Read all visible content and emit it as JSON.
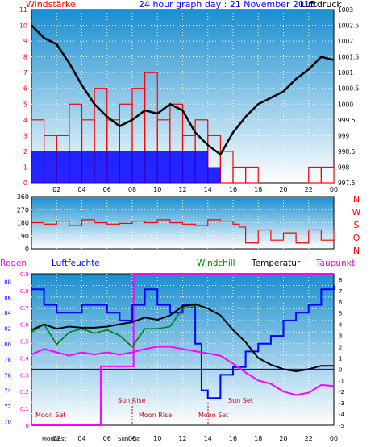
{
  "header": {
    "left_title": "Windstärke",
    "center_title": "24 hour graph day : 21 November 2015",
    "right_title": "Luftdruck"
  },
  "colors": {
    "background": "#ffffff",
    "gradient_top": "#1a8fd0",
    "gradient_bottom": "#ffffff",
    "wind_speed": "#ff0000",
    "gust": "#0000ff",
    "pressure": "#000000",
    "wind_dir": "#ff0000",
    "rain": "#ff00ff",
    "humidity": "#0000ff",
    "windchill": "#008000",
    "temperature": "#000000",
    "dewpoint": "#ff00ff"
  },
  "chart_data": [
    {
      "type": "line",
      "name": "wind-pressure",
      "x_ticks": [
        "02",
        "04",
        "06",
        "08",
        "10",
        "12",
        "14",
        "16",
        "18",
        "20",
        "22",
        "00"
      ],
      "left_axis": {
        "ticks": [
          "0",
          "1",
          "2",
          "3",
          "4",
          "5",
          "6",
          "7",
          "8",
          "9",
          "10",
          "11"
        ],
        "range": [
          0,
          11
        ]
      },
      "right_axis": {
        "ticks": [
          "997.5",
          "998",
          "998.5",
          "999",
          "999.5",
          "1000",
          "1000.5",
          "1001",
          "1001.5",
          "1002",
          "1002.5",
          "1003"
        ],
        "range": [
          997.5,
          1003
        ]
      },
      "wind_speed_hourly": [
        4,
        3,
        3,
        5,
        4,
        6,
        4,
        5,
        6,
        7,
        4,
        5,
        3,
        4,
        3,
        2,
        1,
        1,
        0,
        0,
        0,
        0,
        1,
        1
      ],
      "gust_hourly": [
        2,
        2,
        2,
        2,
        2,
        2,
        2,
        2,
        2,
        2,
        2,
        2,
        2,
        2,
        1,
        0,
        0,
        0,
        0,
        0,
        0,
        0,
        0,
        0
      ],
      "pressure_x": [
        0,
        1,
        2,
        3,
        4,
        5,
        6,
        7,
        8,
        9,
        10,
        11,
        12,
        13,
        14,
        15,
        16,
        17,
        18,
        19,
        20,
        21,
        22,
        23,
        24
      ],
      "pressure_y": [
        1002.5,
        1002.1,
        1001.9,
        1001.3,
        1000.6,
        1000,
        999.6,
        999.3,
        999.5,
        999.8,
        999.7,
        1000,
        999.8,
        999.1,
        998.7,
        998.4,
        999.1,
        999.6,
        1000,
        1000.2,
        1000.4,
        1000.8,
        1001.1,
        1001.5,
        1001.4
      ]
    },
    {
      "type": "line",
      "name": "wind-direction",
      "left_axis": {
        "ticks": [
          "0",
          "90",
          "180",
          "270",
          "360"
        ],
        "range": [
          0,
          360
        ]
      },
      "right_axis_labels": [
        "N",
        "W",
        "S",
        "O",
        "N"
      ],
      "direction_x": [
        0,
        1,
        2,
        3,
        4,
        5,
        6,
        7,
        8,
        9,
        10,
        11,
        12,
        13,
        14,
        15,
        16,
        16.5,
        17,
        18,
        19,
        20,
        21,
        22,
        23,
        24
      ],
      "direction_y": [
        180,
        170,
        190,
        160,
        200,
        180,
        170,
        175,
        190,
        180,
        200,
        180,
        170,
        160,
        200,
        190,
        170,
        150,
        40,
        130,
        60,
        110,
        40,
        130,
        60,
        130
      ]
    },
    {
      "type": "line",
      "name": "climate",
      "x_ticks": [
        "02",
        "04",
        "06",
        "08",
        "10",
        "12",
        "14",
        "16",
        "18",
        "20",
        "22",
        "00"
      ],
      "legend": [
        "Regen",
        "Luftfeuchte",
        "Windchill",
        "Temperatur",
        "Taupunkt"
      ],
      "humidity_axis": {
        "ticks": [
          "70",
          "72",
          "74",
          "76",
          "78",
          "80",
          "82",
          "84",
          "86",
          "88"
        ],
        "range": [
          69.5,
          89
        ]
      },
      "rain_axis": {
        "ticks": [
          "0",
          "0.1",
          "0.2",
          "0.3",
          "0.4",
          "0.5",
          "0.6",
          "0.7",
          "0.8",
          "0.9"
        ],
        "range": [
          0,
          0.9
        ]
      },
      "temp_axis": {
        "ticks": [
          "-5",
          "-4",
          "-3",
          "-2",
          "-1",
          "0",
          "1",
          "2",
          "3",
          "4",
          "5",
          "6",
          "7",
          "8"
        ],
        "range": [
          -5,
          8.5
        ]
      },
      "rain_x": [
        0,
        5.5,
        5.5,
        8.1,
        8.1,
        24
      ],
      "rain_y": [
        0,
        0,
        0.35,
        0.35,
        0.9,
        0.9
      ],
      "humidity_x": [
        0,
        1,
        2,
        3,
        4,
        5,
        6,
        7,
        8,
        9,
        10,
        11,
        12,
        13,
        13.5,
        14,
        15,
        16,
        17,
        18,
        19,
        20,
        21,
        22,
        23,
        24
      ],
      "humidity_y": [
        87,
        85,
        84,
        84,
        85,
        85,
        84,
        83,
        85,
        87,
        85,
        84,
        85,
        80,
        74,
        73,
        76,
        77,
        79,
        80,
        81,
        83,
        84,
        85,
        87,
        87.5
      ],
      "temperature_x": [
        0,
        1,
        2,
        3,
        4,
        5,
        6,
        7,
        8,
        9,
        10,
        11,
        12,
        13,
        14,
        15,
        16,
        17,
        18,
        19,
        20,
        21,
        22,
        23,
        24
      ],
      "temperature_y": [
        3.5,
        4,
        3.6,
        3.8,
        3.7,
        3.7,
        3.8,
        4,
        4.2,
        4.6,
        4.4,
        4.8,
        5.6,
        5.8,
        5.4,
        4.8,
        3.5,
        2.4,
        1,
        0.4,
        0,
        -0.2,
        0,
        0.3,
        0.3
      ],
      "windchill_x": [
        0,
        1,
        2,
        3,
        4,
        5,
        6,
        7,
        8,
        9,
        10,
        11,
        12,
        13
      ],
      "windchill_y": [
        3.3,
        4,
        2.2,
        3.3,
        3.6,
        3.2,
        3.5,
        3,
        2,
        3.6,
        3.6,
        3.8,
        5.4,
        5.6
      ],
      "dewpoint_x": [
        0,
        1,
        2,
        3,
        4,
        5,
        6,
        7,
        8,
        9,
        10,
        11,
        12,
        13,
        14,
        15,
        16,
        17,
        18,
        19,
        20,
        21,
        22,
        23,
        24
      ],
      "dewpoint_y": [
        1.3,
        1.8,
        1.5,
        1.2,
        1.5,
        1.3,
        1.5,
        1.3,
        1.5,
        1.8,
        2,
        2,
        1.8,
        1.6,
        1.4,
        1.2,
        0.5,
        -0.3,
        -1,
        -1.3,
        -2,
        -2.3,
        -2.1,
        -1.4,
        -1.5
      ],
      "annotations": [
        "Moon Set",
        "Sun Rise",
        "Moon Rise",
        "Sun Set",
        "Moon Set",
        "Sun Set"
      ],
      "bottom_labels": [
        "MoonRst",
        "Sun Rst"
      ]
    }
  ]
}
